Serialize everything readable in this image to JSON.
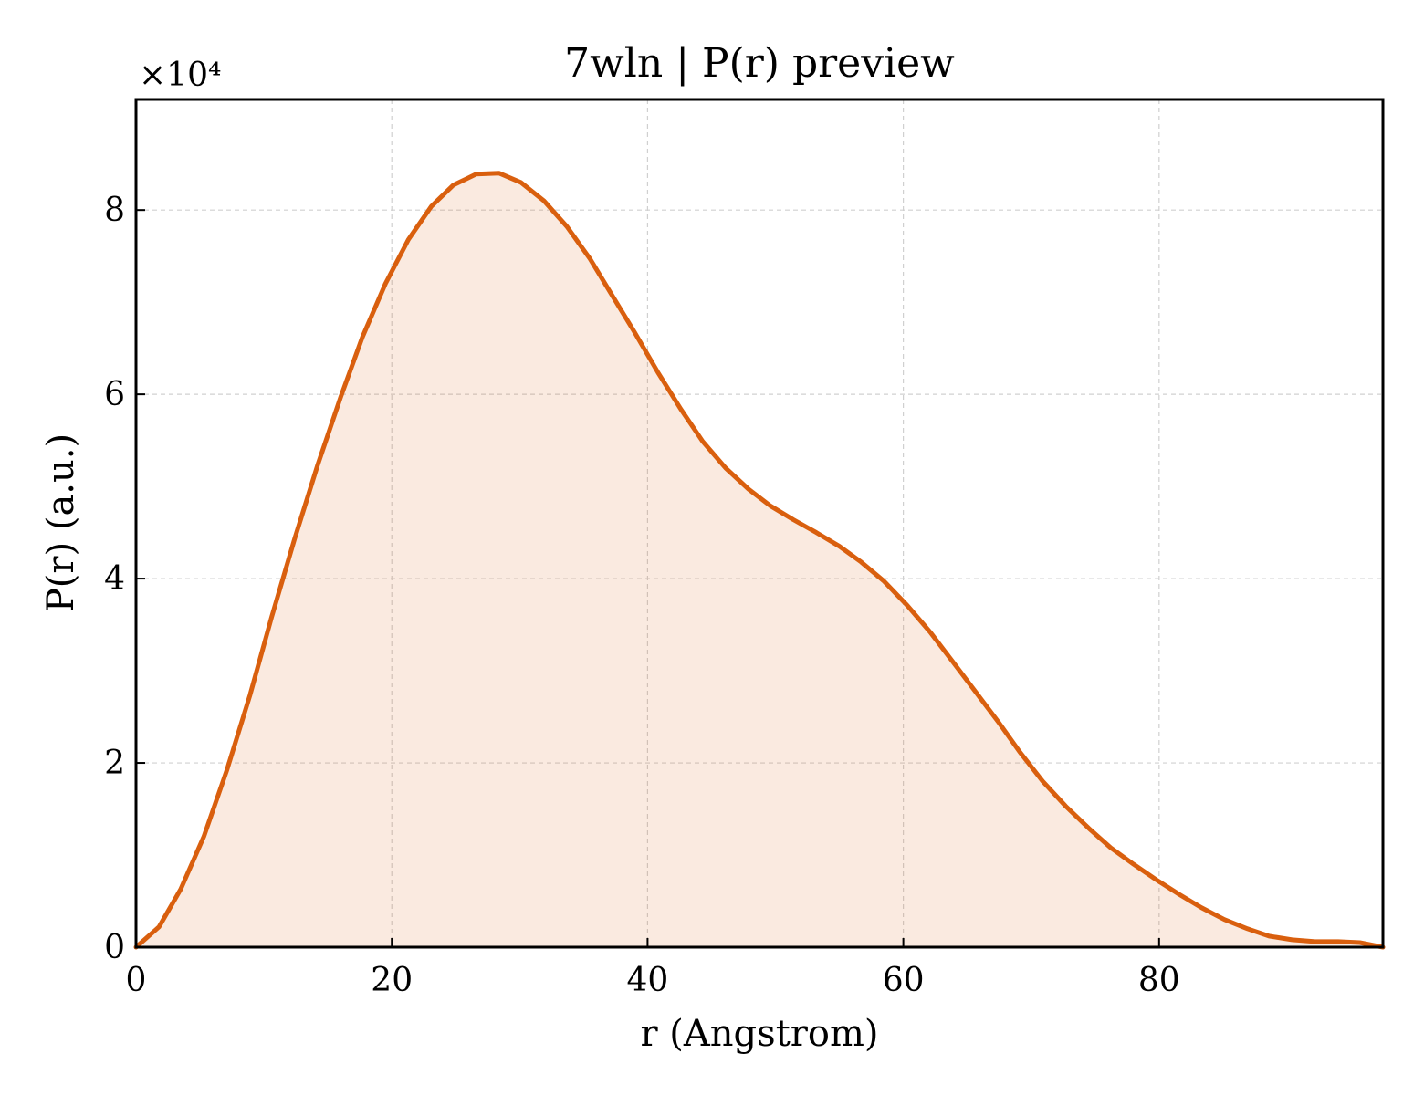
{
  "chart_data": {
    "type": "area",
    "title": "7wln | P(r) preview",
    "xlabel": "r (Angstrom)",
    "ylabel": "P(r) (a.u.)",
    "y_offset_label": "×10⁴",
    "xlim": [
      0,
      97.5
    ],
    "ylim": [
      0,
      9.2
    ],
    "y_scale_factor": 10000,
    "x_ticks": [
      0,
      20,
      40,
      60,
      80
    ],
    "y_ticks": [
      0,
      2,
      4,
      6,
      8
    ],
    "x_tick_labels": [
      "0",
      "20",
      "40",
      "60",
      "80"
    ],
    "y_tick_labels": [
      "0",
      "2",
      "4",
      "6",
      "8"
    ],
    "grid": true,
    "legend": "none",
    "series": [
      {
        "color": "#d95f0e",
        "fill_color": "#d95f0e",
        "fill_opacity": 0.13,
        "x": [
          0,
          1.8,
          3.5,
          5.3,
          7.1,
          8.9,
          10.6,
          12.4,
          14.2,
          16.0,
          17.7,
          19.5,
          21.3,
          23.1,
          24.8,
          26.6,
          28.4,
          30.1,
          31.9,
          33.7,
          35.5,
          37.2,
          39.0,
          40.8,
          42.6,
          44.3,
          46.1,
          47.9,
          49.6,
          51.4,
          53.2,
          55.0,
          56.7,
          58.5,
          60.3,
          62.1,
          63.8,
          65.6,
          67.4,
          69.1,
          70.9,
          72.7,
          74.5,
          76.2,
          78.0,
          79.8,
          81.6,
          83.3,
          85.1,
          86.9,
          88.6,
          90.4,
          92.2,
          94.0,
          95.7,
          97.5
        ],
        "values": [
          0.0,
          0.22,
          0.63,
          1.2,
          1.92,
          2.73,
          3.58,
          4.43,
          5.23,
          5.97,
          6.62,
          7.2,
          7.68,
          8.04,
          8.27,
          8.39,
          8.4,
          8.3,
          8.1,
          7.82,
          7.47,
          7.08,
          6.67,
          6.24,
          5.84,
          5.49,
          5.2,
          4.97,
          4.79,
          4.64,
          4.5,
          4.35,
          4.18,
          3.97,
          3.71,
          3.42,
          3.11,
          2.78,
          2.45,
          2.12,
          1.8,
          1.53,
          1.29,
          1.08,
          0.9,
          0.73,
          0.57,
          0.43,
          0.3,
          0.2,
          0.12,
          0.08,
          0.06,
          0.06,
          0.05,
          0.0
        ]
      }
    ]
  }
}
